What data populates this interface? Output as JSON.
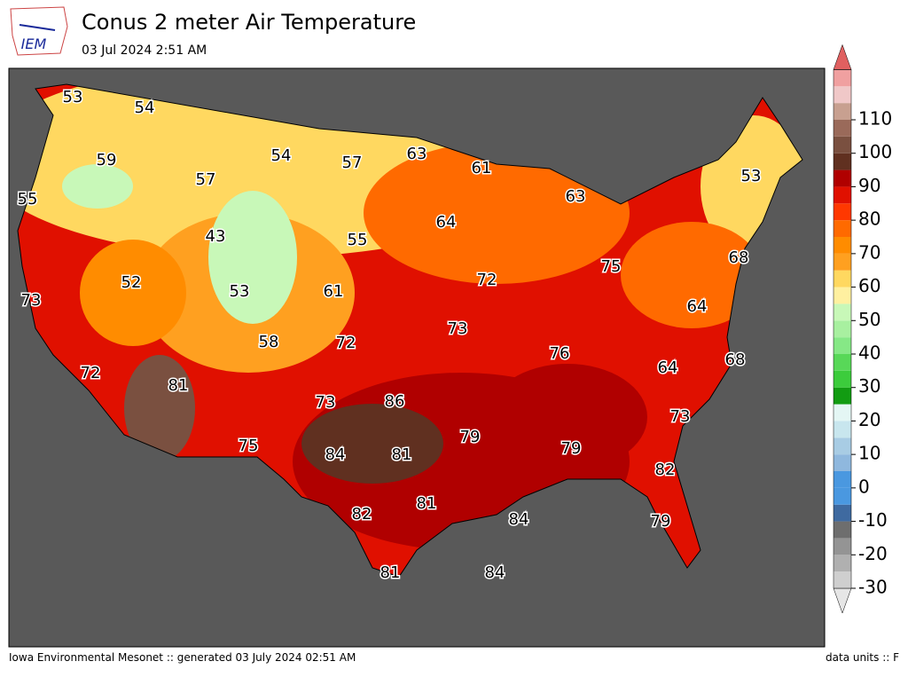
{
  "header": {
    "logo": "IEM",
    "title": "Conus 2 meter Air Temperature",
    "subtitle": "03 Jul 2024 2:51 AM"
  },
  "map": {
    "labels": [
      53,
      54,
      59,
      57,
      54,
      57,
      63,
      61,
      55,
      63,
      53,
      43,
      64,
      55,
      68,
      52,
      53,
      61,
      72,
      75,
      73,
      64,
      58,
      72,
      73,
      76,
      64,
      68,
      72,
      81,
      73,
      86,
      79,
      79,
      73,
      75,
      84,
      81,
      82,
      82,
      81,
      84,
      79,
      81,
      84
    ]
  },
  "colorbar": {
    "ticks": [
      -30,
      -20,
      -10,
      0,
      10,
      20,
      30,
      40,
      50,
      60,
      70,
      80,
      90,
      100,
      110
    ],
    "colors": [
      "#e6e6e6",
      "#cfcfcf",
      "#b0b0b0",
      "#949494",
      "#6e6e6e",
      "#3f6aa0",
      "#4a98e0",
      "#4a98e0",
      "#8fb8de",
      "#a8cce4",
      "#c8e6ee",
      "#e4f6f4",
      "#129c12",
      "#3ccc3c",
      "#58d858",
      "#86e886",
      "#a8f0a0",
      "#c8f8b8",
      "#fff0a0",
      "#ffd860",
      "#ffa020",
      "#ff8c00",
      "#ff6a00",
      "#ff3800",
      "#e01000",
      "#b00000",
      "#603020",
      "#7a5040",
      "#9a6a5a",
      "#c8a090",
      "#f0c8c8",
      "#f0a0a0",
      "#e06060"
    ]
  },
  "footer": {
    "source": "Iowa Environmental Mesonet :: generated 03 July 2024 02:51 AM",
    "units": "data units :: F"
  }
}
